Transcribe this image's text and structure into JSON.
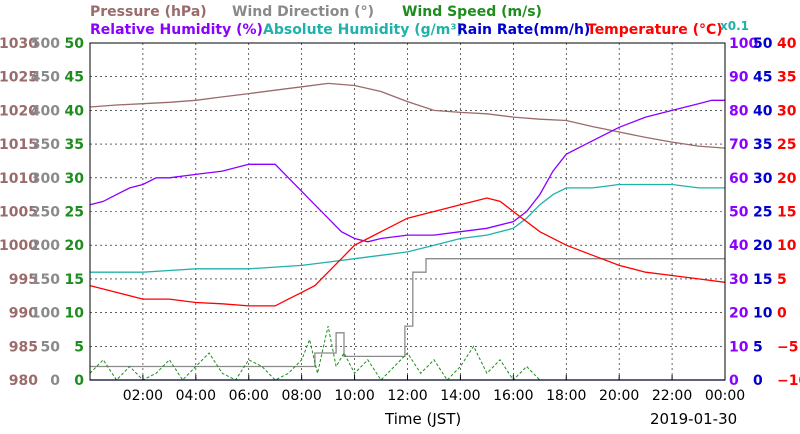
{
  "chart_data": {
    "type": "line",
    "date_label": "2019-01-30",
    "xlabel": "Time (JST)",
    "x_ticks": [
      "02:00",
      "04:00",
      "06:00",
      "08:00",
      "10:00",
      "12:00",
      "14:00",
      "16:00",
      "18:00",
      "20:00",
      "22:00",
      "00:00"
    ],
    "xlim_hours": [
      0,
      24
    ],
    "legend_row1": [
      {
        "text": "Pressure (hPa)",
        "color": "#9a6b6b"
      },
      {
        "text": "Wind Direction (°)",
        "color": "#8a8a8a"
      },
      {
        "text": "Wind Speed (m/s)",
        "color": "#1e8c1e"
      }
    ],
    "legend_row2": [
      {
        "text": "Relative Humidity (%)",
        "color": "#8b00ff"
      },
      {
        "text": "Absolute Humidity (g/m³)",
        "color": "#20b2aa"
      },
      {
        "text": "Rain Rate(mm/h)",
        "color": "#0000cd"
      },
      {
        "text": "Temperature (°C)",
        "color": "#ff0000"
      }
    ],
    "scale_note": "x0.1",
    "axes_left": [
      {
        "name": "pressure",
        "color": "#9a6b6b",
        "ticks": [
          "1030",
          "1025",
          "1020",
          "1015",
          "1010",
          "1005",
          "1000",
          "995",
          "990",
          "985",
          "980"
        ]
      },
      {
        "name": "wind_direction",
        "color": "#8a8a8a",
        "ticks": [
          "500",
          "450",
          "400",
          "350",
          "300",
          "250",
          "200",
          "150",
          "100",
          "50",
          "0"
        ]
      },
      {
        "name": "wind_speed",
        "color": "#1e8c1e",
        "ticks": [
          "50",
          "45",
          "40",
          "35",
          "30",
          "25",
          "20",
          "15",
          "10",
          "5",
          "0"
        ]
      }
    ],
    "axes_right": [
      {
        "name": "humidity",
        "color": "#8b00ff",
        "ticks": [
          "100",
          "90",
          "80",
          "70",
          "60",
          "50",
          "40",
          "30",
          "20",
          "10",
          "0"
        ]
      },
      {
        "name": "rain_rate",
        "color": "#0000cd",
        "ticks": [
          "50",
          "45",
          "40",
          "35",
          "30",
          "25",
          "20",
          "15",
          "10",
          "5",
          "0"
        ]
      },
      {
        "name": "temperature",
        "color": "#ff0000",
        "ticks": [
          "40",
          "35",
          "30",
          "25",
          "20",
          "15",
          "10",
          "5",
          "0",
          "−5",
          "−10"
        ]
      }
    ],
    "series": [
      {
        "name": "Pressure (hPa)",
        "color": "#9a6b6b",
        "axis": "pressure",
        "ylim": [
          980,
          1030
        ],
        "x": [
          0,
          1,
          2,
          3,
          4,
          5,
          6,
          7,
          8,
          9,
          10,
          11,
          12,
          13,
          14,
          15,
          16,
          17,
          18,
          19,
          20,
          21,
          22,
          23,
          24
        ],
        "y": [
          1020.5,
          1020.8,
          1021,
          1021.2,
          1021.5,
          1022,
          1022.5,
          1023,
          1023.5,
          1024,
          1023.7,
          1022.8,
          1021.3,
          1020,
          1019.7,
          1019.5,
          1019,
          1018.7,
          1018.5,
          1017.6,
          1016.8,
          1016,
          1015.3,
          1014.7,
          1014.4
        ]
      },
      {
        "name": "Wind Direction (°)",
        "color": "#8a8a8a",
        "axis": "wind_direction",
        "ylim": [
          0,
          500
        ],
        "step": true,
        "x": [
          0,
          8.5,
          8.5,
          9.3,
          9.3,
          9.6,
          9.6,
          9.9,
          9.9,
          11.9,
          11.9,
          12.2,
          12.2,
          12.7,
          12.7,
          13.3,
          13.3,
          24
        ],
        "y": [
          20,
          20,
          40,
          40,
          70,
          70,
          35,
          35,
          35,
          35,
          80,
          80,
          160,
          160,
          180,
          180,
          180,
          180
        ]
      },
      {
        "name": "Wind Speed (m/s)",
        "color": "#1e8c1e",
        "axis": "wind_speed",
        "ylim": [
          0,
          50
        ],
        "x": [
          0,
          0.5,
          1,
          1.5,
          2,
          2.5,
          3,
          3.5,
          4,
          4.5,
          5,
          5.5,
          6,
          6.5,
          7,
          7.5,
          8,
          8.3,
          8.6,
          9,
          9.3,
          9.6,
          10,
          10.5,
          11,
          11.5,
          12,
          12.5,
          13,
          13.5,
          14,
          14.5,
          15,
          15.5,
          16,
          16.5,
          17
        ],
        "y": [
          1,
          3,
          0,
          2,
          0,
          1,
          3,
          0,
          2,
          4,
          1,
          0,
          3,
          2,
          0,
          1,
          3,
          6,
          1,
          8,
          2,
          4,
          1,
          3,
          0,
          2,
          4,
          1,
          3,
          0,
          2,
          5,
          1,
          3,
          0,
          2,
          0
        ]
      },
      {
        "name": "Relative Humidity (%)",
        "color": "#8b00ff",
        "axis": "humidity",
        "ylim": [
          0,
          100
        ],
        "x": [
          0,
          0.5,
          1,
          1.5,
          2,
          2.5,
          3,
          4,
          5,
          6,
          6.5,
          7,
          7.5,
          8,
          8.5,
          9,
          9.5,
          10,
          10.5,
          11,
          12,
          13,
          14,
          15,
          16,
          16.5,
          17,
          17.5,
          18,
          19,
          20,
          21,
          22,
          23,
          23.5,
          24
        ],
        "y": [
          52,
          53,
          55,
          57,
          58,
          60,
          60,
          61,
          62,
          64,
          64,
          64,
          60,
          56,
          52,
          48,
          44,
          42,
          41,
          42,
          43,
          43,
          44,
          45,
          47,
          50,
          55,
          62,
          67,
          71,
          75,
          78,
          80,
          82,
          83,
          83
        ]
      },
      {
        "name": "Absolute Humidity (g/m³)",
        "color": "#20b2aa",
        "axis": "humidity",
        "ylim": [
          0,
          100
        ],
        "x": [
          0,
          1,
          2,
          3,
          4,
          5,
          6,
          7,
          8,
          9,
          10,
          11,
          12,
          13,
          14,
          15,
          16,
          16.5,
          17,
          17.5,
          18,
          19,
          20,
          21,
          22,
          23,
          24
        ],
        "y": [
          32,
          32,
          32,
          32.5,
          33,
          33,
          33,
          33.5,
          34,
          35,
          36,
          37,
          38,
          40,
          42,
          43,
          45,
          48,
          52,
          55,
          57,
          57,
          58,
          58,
          58,
          57,
          57
        ]
      },
      {
        "name": "Temperature (°C)",
        "color": "#ff0000",
        "axis": "temperature",
        "ylim": [
          -10,
          40
        ],
        "x": [
          0,
          1,
          2,
          3,
          4,
          5,
          6,
          7,
          7.5,
          8,
          8.5,
          9,
          9.5,
          10,
          10.5,
          11,
          12,
          13,
          14,
          15,
          15.5,
          16,
          17,
          18,
          19,
          20,
          21,
          22,
          23,
          24
        ],
        "y": [
          4,
          3,
          2,
          2,
          1.5,
          1.3,
          1,
          1,
          2,
          3,
          4,
          6,
          8,
          10,
          11,
          12,
          14,
          15,
          16,
          17,
          16.5,
          15,
          12,
          10,
          8.5,
          7,
          6,
          5.5,
          5,
          4.5
        ]
      },
      {
        "name": "Rain Rate(mm/h)",
        "color": "#0000cd",
        "axis": "rain_rate",
        "ylim": [
          0,
          50
        ],
        "x": [
          0,
          24
        ],
        "y": [
          0,
          0
        ]
      }
    ]
  }
}
